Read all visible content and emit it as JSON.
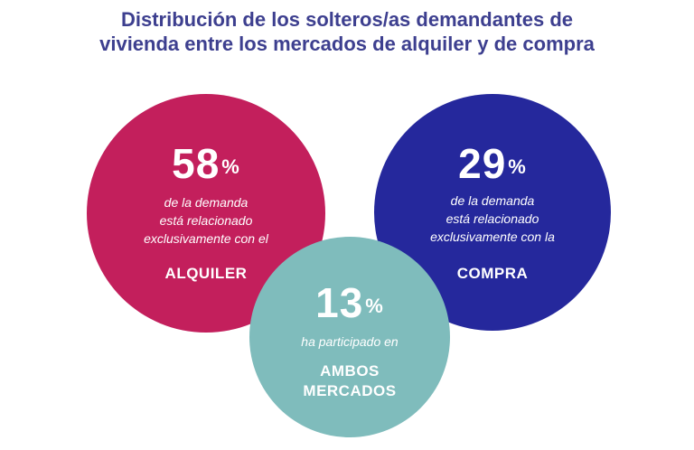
{
  "chart_data": {
    "type": "pie",
    "title_lines": [
      "Distribución de los solteros/as demandantes de",
      "vivienda entre los mercados de alquiler y de compra"
    ],
    "items": [
      {
        "key": "alquiler",
        "value": 58,
        "value_label": "58",
        "unit": "%",
        "description_lines": [
          "de la demanda",
          "está relacionado",
          "exclusivamente con el"
        ],
        "label_lines": [
          "ALQUILER"
        ],
        "color": "#c31f5c"
      },
      {
        "key": "compra",
        "value": 29,
        "value_label": "29",
        "unit": "%",
        "description_lines": [
          "de la demanda",
          "está relacionado",
          "exclusivamente con la"
        ],
        "label_lines": [
          "COMPRA"
        ],
        "color": "#25289c"
      },
      {
        "key": "ambos",
        "value": 13,
        "value_label": "13",
        "unit": "%",
        "description_lines": [
          "ha participado en"
        ],
        "label_lines": [
          "AMBOS",
          "MERCADOS"
        ],
        "color": "#7fbcbc"
      }
    ]
  }
}
